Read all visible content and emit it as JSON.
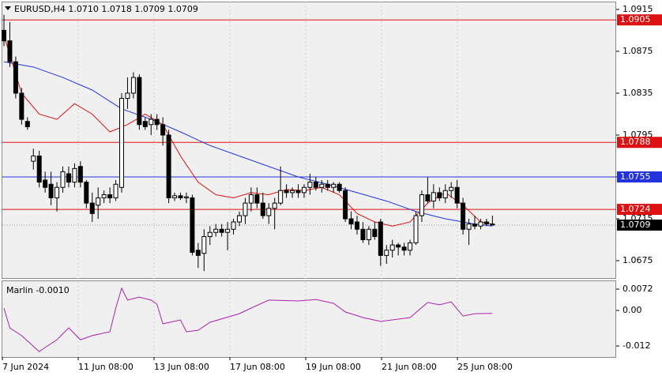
{
  "chart_data": {
    "type": "candlestick",
    "title": "EURUSD,H4  1.0710 1.0718 1.0709 1.0709",
    "ylim": [
      1.06584,
      1.09225
    ],
    "yticks": [
      1.0915,
      1.0875,
      1.0835,
      1.0795,
      1.0755,
      1.0715,
      1.0675
    ],
    "bull_color": "#ffffff",
    "bear_color": "#000000",
    "ohlc": [
      [
        1.0895,
        1.091,
        1.088,
        1.0885
      ],
      [
        1.0885,
        1.0903,
        1.086,
        1.0865
      ],
      [
        1.0865,
        1.087,
        1.083,
        1.0835
      ],
      [
        1.0835,
        1.084,
        1.0805,
        1.081
      ],
      [
        1.0808,
        1.0812,
        1.08,
        1.0803
      ],
      [
        1.077,
        1.0782,
        1.0762,
        1.0775
      ],
      [
        1.0775,
        1.078,
        1.0745,
        1.075
      ],
      [
        1.0752,
        1.076,
        1.074,
        1.0745
      ],
      [
        1.0748,
        1.076,
        1.0728,
        1.0735
      ],
      [
        1.0735,
        1.075,
        1.0722,
        1.0745
      ],
      [
        1.0745,
        1.0765,
        1.074,
        1.076
      ],
      [
        1.0758,
        1.0765,
        1.0745,
        1.075
      ],
      [
        1.075,
        1.0768,
        1.0745,
        1.0763
      ],
      [
        1.0765,
        1.077,
        1.0745,
        1.075
      ],
      [
        1.075,
        1.0752,
        1.0725,
        1.073
      ],
      [
        1.073,
        1.074,
        1.0712,
        1.072
      ],
      [
        1.0728,
        1.0745,
        1.0715,
        1.0735
      ],
      [
        1.0735,
        1.0742,
        1.073,
        1.0738
      ],
      [
        1.0738,
        1.0745,
        1.073,
        1.0735
      ],
      [
        1.0735,
        1.0752,
        1.0732,
        1.0748
      ],
      [
        1.0745,
        1.0835,
        1.074,
        1.083
      ],
      [
        1.083,
        1.085,
        1.082,
        1.0835
      ],
      [
        1.0835,
        1.0855,
        1.083,
        1.085
      ],
      [
        1.085,
        1.0853,
        1.08,
        1.0805
      ],
      [
        1.0808,
        1.0812,
        1.08,
        1.0803
      ],
      [
        1.0805,
        1.0815,
        1.0795,
        1.081
      ],
      [
        1.081,
        1.0815,
        1.08,
        1.0805
      ],
      [
        1.0805,
        1.0812,
        1.0785,
        1.0795
      ],
      [
        1.0795,
        1.08,
        1.073,
        1.0735
      ],
      [
        1.0735,
        1.074,
        1.0732,
        1.0737
      ],
      [
        1.0737,
        1.074,
        1.0733,
        1.0735
      ],
      [
        1.0735,
        1.074,
        1.073,
        1.0736
      ],
      [
        1.0735,
        1.0738,
        1.068,
        1.0683
      ],
      [
        1.0685,
        1.0692,
        1.0668,
        1.068
      ],
      [
        1.0682,
        1.0705,
        1.0665,
        1.0698
      ],
      [
        1.0698,
        1.0708,
        1.069,
        1.0702
      ],
      [
        1.0702,
        1.071,
        1.0698,
        1.0705
      ],
      [
        1.0705,
        1.071,
        1.0698,
        1.0702
      ],
      [
        1.0702,
        1.0712,
        1.0685,
        1.0705
      ],
      [
        1.0705,
        1.0715,
        1.07,
        1.0712
      ],
      [
        1.0712,
        1.0722,
        1.0708,
        1.0718
      ],
      [
        1.0718,
        1.0735,
        1.071,
        1.073
      ],
      [
        1.073,
        1.0745,
        1.0722,
        1.0738
      ],
      [
        1.0738,
        1.0745,
        1.0725,
        1.073
      ],
      [
        1.073,
        1.074,
        1.0715,
        1.0718
      ],
      [
        1.0718,
        1.073,
        1.071,
        1.0725
      ],
      [
        1.0725,
        1.0735,
        1.0705,
        1.073
      ],
      [
        1.073,
        1.0765,
        1.0728,
        1.0742
      ],
      [
        1.0742,
        1.0748,
        1.0735,
        1.074
      ],
      [
        1.074,
        1.0745,
        1.0735,
        1.0742
      ],
      [
        1.0742,
        1.0748,
        1.0735,
        1.074
      ],
      [
        1.074,
        1.0748,
        1.0735,
        1.0745
      ],
      [
        1.0745,
        1.0758,
        1.0738,
        1.075
      ],
      [
        1.075,
        1.0755,
        1.0742,
        1.0745
      ],
      [
        1.0745,
        1.0752,
        1.074,
        1.0748
      ],
      [
        1.0748,
        1.0752,
        1.0742,
        1.0745
      ],
      [
        1.0745,
        1.075,
        1.074,
        1.0748
      ],
      [
        1.0748,
        1.075,
        1.074,
        1.0742
      ],
      [
        1.0742,
        1.0745,
        1.0712,
        1.0715
      ],
      [
        1.0715,
        1.0722,
        1.0705,
        1.071
      ],
      [
        1.0712,
        1.0718,
        1.07,
        1.0705
      ],
      [
        1.0705,
        1.0712,
        1.0692,
        1.0695
      ],
      [
        1.0695,
        1.0708,
        1.069,
        1.0705
      ],
      [
        1.0705,
        1.0712,
        1.0695,
        1.0698
      ],
      [
        1.0712,
        1.0715,
        1.067,
        1.068
      ],
      [
        1.068,
        1.069,
        1.0672,
        1.0685
      ],
      [
        1.0685,
        1.0695,
        1.0678,
        1.069
      ],
      [
        1.069,
        1.0692,
        1.068,
        1.0688
      ],
      [
        1.0688,
        1.0692,
        1.068,
        1.0685
      ],
      [
        1.0685,
        1.0695,
        1.068,
        1.0692
      ],
      [
        1.0692,
        1.0722,
        1.069,
        1.0718
      ],
      [
        1.0718,
        1.0742,
        1.0712,
        1.0738
      ],
      [
        1.0738,
        1.0755,
        1.073,
        1.0732
      ],
      [
        1.0732,
        1.0748,
        1.0725,
        1.074
      ],
      [
        1.074,
        1.0745,
        1.0732,
        1.0735
      ],
      [
        1.0735,
        1.0748,
        1.073,
        1.0742
      ],
      [
        1.0742,
        1.075,
        1.0735,
        1.0745
      ],
      [
        1.0745,
        1.0752,
        1.0725,
        1.073
      ],
      [
        1.073,
        1.0735,
        1.07,
        1.0705
      ],
      [
        1.0705,
        1.0715,
        1.069,
        1.071
      ],
      [
        1.071,
        1.0718,
        1.0705,
        1.0708
      ],
      [
        1.0708,
        1.0715,
        1.0705,
        1.0712
      ],
      [
        1.0712,
        1.0715,
        1.0708,
        1.071
      ],
      [
        1.071,
        1.0718,
        1.0709,
        1.0709
      ]
    ],
    "series": [
      {
        "color": "#2233dd",
        "x": [
          0,
          5,
          10,
          15,
          20,
          25,
          30,
          35,
          40,
          45,
          50,
          55,
          60,
          65,
          70,
          75,
          80,
          83
        ],
        "values": [
          1.0865,
          1.086,
          1.085,
          1.0838,
          1.082,
          1.081,
          1.0798,
          1.0785,
          1.0775,
          1.0765,
          1.0755,
          1.0748,
          1.074,
          1.0732,
          1.0722,
          1.0715,
          1.071,
          1.0708
        ]
      },
      {
        "color": "#dd1111",
        "x": [
          0,
          3,
          6,
          9,
          12,
          15,
          18,
          21,
          24,
          27,
          30,
          33,
          36,
          39,
          42,
          45,
          48,
          51,
          54,
          57,
          60,
          63,
          66,
          69,
          72,
          75,
          78,
          81,
          83
        ],
        "values": [
          1.089,
          1.0835,
          1.0815,
          1.081,
          1.0825,
          1.0815,
          1.0798,
          1.0805,
          1.0815,
          1.0805,
          1.0775,
          1.075,
          1.0738,
          1.0735,
          1.074,
          1.0738,
          1.0743,
          1.0742,
          1.0745,
          1.0738,
          1.072,
          1.0712,
          1.0708,
          1.0712,
          1.073,
          1.074,
          1.0728,
          1.0712,
          1.071
        ]
      }
    ],
    "levels": [
      {
        "value": 1.0905,
        "color": "#dd1111"
      },
      {
        "value": 1.0788,
        "color": "#dd1111"
      },
      {
        "value": 1.0755,
        "color": "#2233dd"
      },
      {
        "value": 1.0724,
        "color": "#dd1111"
      }
    ],
    "last_price": 1.0709,
    "x_labels": [
      "7 Jun 2024",
      "11 Jun 08:00",
      "13 Jun 08:00",
      "17 Jun 08:00",
      "19 Jun 08:00",
      "21 Jun 08:00",
      "25 Jun 08:00"
    ],
    "indicator": {
      "label": "Marlin -0.0010",
      "color": "#aa22aa",
      "ylim": [
        -0.01573,
        0.00987
      ],
      "yticks": [
        0.0072,
        {
          "value": 0,
          "label": "0.00"
        },
        -0.012
      ],
      "x": [
        0,
        1,
        3,
        6,
        7,
        9,
        11,
        13,
        15,
        18,
        19,
        20,
        21,
        23,
        25,
        26,
        27,
        30,
        31,
        33,
        35,
        40,
        42,
        45,
        50,
        53,
        56,
        58,
        61,
        64,
        66,
        69,
        72,
        74,
        76,
        78,
        80,
        83
      ],
      "values": [
        0.0008,
        -0.0059,
        -0.0085,
        -0.0139,
        -0.0125,
        -0.0099,
        -0.0059,
        -0.0099,
        -0.0085,
        -0.0072,
        0.0008,
        0.0075,
        0.0035,
        0.0045,
        0.0035,
        0.0021,
        -0.0045,
        -0.0032,
        -0.0072,
        -0.0067,
        -0.004,
        -0.0011,
        0.0008,
        0.0035,
        0.0032,
        0.0037,
        0.0024,
        -0.0005,
        -0.0024,
        -0.0037,
        -0.0032,
        -0.0024,
        0.0027,
        0.0019,
        0.0029,
        -0.0019,
        -0.0011,
        -0.001
      ]
    }
  }
}
